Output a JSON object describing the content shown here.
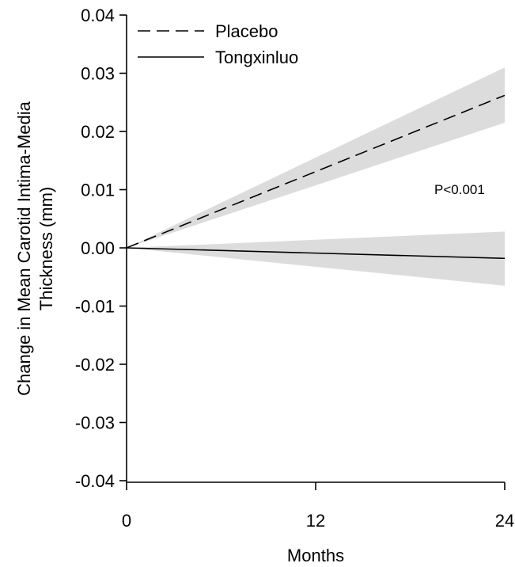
{
  "chart_data": {
    "type": "line",
    "title": "",
    "xlabel": "Months",
    "ylabel_line1": "Change in Mean Carotid Intima-Media",
    "ylabel_line2": "Thickness (mm)",
    "xlim": [
      0,
      24
    ],
    "ylim": [
      -0.04,
      0.04
    ],
    "x_ticks": [
      0,
      12,
      24
    ],
    "x_tick_labels": [
      "0",
      "12",
      "24"
    ],
    "y_ticks": [
      -0.04,
      -0.03,
      -0.02,
      -0.01,
      0.0,
      0.01,
      0.02,
      0.03,
      0.04
    ],
    "y_tick_labels": [
      "-0.04",
      "-0.03",
      "-0.02",
      "-0.01",
      "0.00",
      "0.01",
      "0.02",
      "0.03",
      "0.04"
    ],
    "grid": false,
    "legend_position": "top-left",
    "annotation": "P<0.001",
    "series": [
      {
        "name": "Placebo",
        "style": "dashed",
        "color": "#000000",
        "x": [
          0,
          24
        ],
        "y": [
          0.0,
          0.0262
        ],
        "ci_lower": [
          0.0,
          0.0215
        ],
        "ci_upper": [
          0.0,
          0.031
        ]
      },
      {
        "name": "Tongxinluo",
        "style": "solid",
        "color": "#000000",
        "x": [
          0,
          24
        ],
        "y": [
          0.0,
          -0.0018
        ],
        "ci_lower": [
          0.0,
          -0.0065
        ],
        "ci_upper": [
          0.0,
          0.0028
        ]
      }
    ],
    "band_color": "#dcdcdc"
  }
}
